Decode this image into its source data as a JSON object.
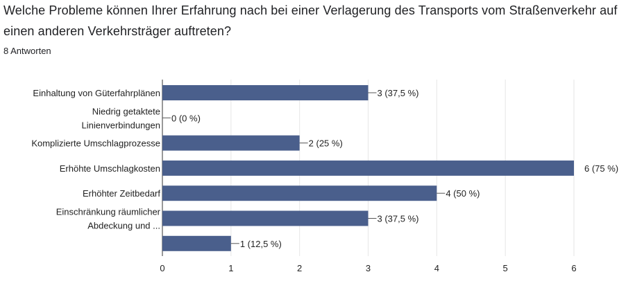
{
  "question": {
    "title": "Welche Probleme können Ihrer Erfahrung nach bei einer Verlagerung des Transports vom Straßenverkehr auf einen anderen Verkehrsträger auftreten?",
    "response_count": "8 Antworten"
  },
  "colors": {
    "bar": "#4a5f8c",
    "grid": "#e6e6e6",
    "axis": "#333333",
    "text": "#222222"
  },
  "chart_data": {
    "type": "bar",
    "orientation": "horizontal",
    "categories": [
      [
        "Einhaltung von Güterfahrplänen"
      ],
      [
        "Niedrig getaktete",
        "Linienverbindungen"
      ],
      [
        "Komplizierte Umschlagprozesse"
      ],
      [
        "Erhöhte Umschlagkosten"
      ],
      [
        "Erhöhter Zeitbedarf"
      ],
      [
        "Einschränkung räumlicher",
        "Abdeckung und ..."
      ],
      [
        ""
      ]
    ],
    "values": [
      3,
      0,
      2,
      6,
      4,
      3,
      1
    ],
    "data_labels": [
      "3 (37,5 %)",
      "0 (0 %)",
      "2 (25 %)",
      "6 (75 %)",
      "4 (50 %)",
      "3 (37,5 %)",
      "1 (12,5 %)"
    ],
    "xlim": [
      0,
      6
    ],
    "x_ticks": [
      "0",
      "1",
      "2",
      "3",
      "4",
      "5",
      "6"
    ],
    "grid": true
  }
}
